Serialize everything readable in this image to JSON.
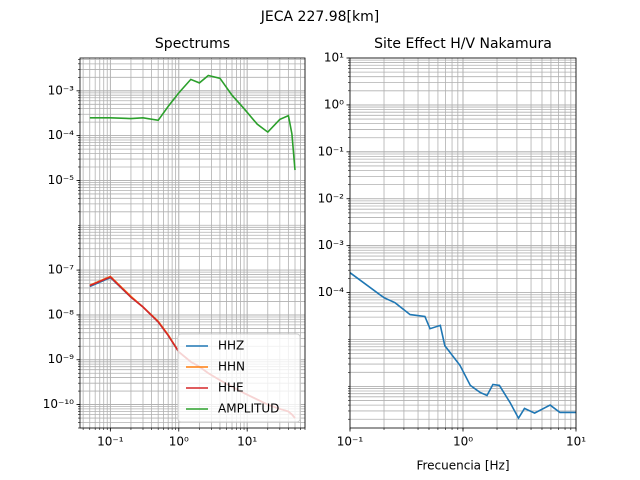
{
  "title": "JECA 227.98[km]",
  "chart_data": [
    {
      "type": "line",
      "title": "Spectrums",
      "xscale": "log",
      "yscale": "log",
      "grid": true,
      "legend": "lower right",
      "xlim": [
        0.036,
        70
      ],
      "ylim": [
        3e-11,
        0.0054
      ],
      "xticks": [
        {
          "value": 0.1,
          "label": "10⁻¹"
        },
        {
          "value": 1,
          "label": "10⁰"
        },
        {
          "value": 10,
          "label": "10¹"
        }
      ],
      "yticks": [
        {
          "value": 1e-10,
          "label": "10⁻¹⁰"
        },
        {
          "value": 1e-09,
          "label": "10⁻⁹"
        },
        {
          "value": 1e-08,
          "label": "10⁻⁸"
        },
        {
          "value": 1e-07,
          "label": "10⁻⁷"
        },
        {
          "value": 1e-05,
          "label": "10⁻⁵"
        },
        {
          "value": 0.0001,
          "label": "10⁻⁴"
        },
        {
          "value": 0.001,
          "label": "10⁻³"
        }
      ],
      "x": [
        0.05,
        0.1,
        0.2,
        0.3,
        0.5,
        0.7,
        1,
        1.5,
        2,
        2.7,
        4,
        6,
        9,
        14,
        20,
        30,
        40,
        45,
        50
      ],
      "series": [
        {
          "name": "HHZ",
          "color": "#1f77b4",
          "values": [
            4.3e-08,
            6.8e-08,
            2.5e-08,
            1.5e-08,
            7e-09,
            3.5e-09,
            1.5e-09,
            9e-10,
            7e-10,
            5e-10,
            3.5e-10,
            2.5e-10,
            1.8e-10,
            1.3e-10,
            1e-10,
            8e-11,
            7e-11,
            6e-11,
            5e-11
          ]
        },
        {
          "name": "HHN",
          "color": "#ff7f0e",
          "values": [
            4.6e-08,
            7.2e-08,
            2.6e-08,
            1.5e-08,
            7.2e-09,
            3.6e-09,
            1.5e-09,
            9e-10,
            7e-10,
            5e-10,
            3.5e-10,
            2.5e-10,
            1.8e-10,
            1.3e-10,
            1e-10,
            8e-11,
            7e-11,
            6e-11,
            5e-11
          ]
        },
        {
          "name": "HHE",
          "color": "#d62728",
          "values": [
            4.5e-08,
            7e-08,
            2.5e-08,
            1.5e-08,
            7e-09,
            3.5e-09,
            1.5e-09,
            9e-10,
            7e-10,
            5e-10,
            3.5e-10,
            2.5e-10,
            1.8e-10,
            1.3e-10,
            1e-10,
            8e-11,
            7e-11,
            6e-11,
            5e-11
          ]
        },
        {
          "name": "AMPLITUD",
          "color": "#2ca02c",
          "values": [
            0.00025,
            0.00025,
            0.00024,
            0.00025,
            0.00022,
            0.00045,
            0.0009,
            0.0018,
            0.0015,
            0.0022,
            0.0019,
            0.0008,
            0.0004,
            0.00018,
            0.00012,
            0.00023,
            0.00028,
            0.00011,
            1.7e-05
          ]
        }
      ]
    },
    {
      "type": "line",
      "title": "Site Effect H/V Nakamura",
      "x_label": "Frecuencia [Hz]",
      "xscale": "log",
      "yscale": "log",
      "grid": true,
      "xlim": [
        0.1,
        10
      ],
      "ylim": [
        1.3e-07,
        10
      ],
      "xticks": [
        {
          "value": 0.1,
          "label": "10⁻¹"
        },
        {
          "value": 1,
          "label": "10⁰"
        },
        {
          "value": 10,
          "label": "10¹"
        }
      ],
      "yticks": [
        {
          "value": 0.0001,
          "label": "10⁻⁴"
        },
        {
          "value": 0.001,
          "label": "10⁻³"
        },
        {
          "value": 0.01,
          "label": "10⁻²"
        },
        {
          "value": 0.1,
          "label": "10⁻¹"
        },
        {
          "value": 1,
          "label": "10⁰"
        },
        {
          "value": 10,
          "label": "10¹"
        }
      ],
      "x": [
        0.1,
        0.2,
        0.25,
        0.34,
        0.46,
        0.51,
        0.63,
        0.69,
        0.94,
        1.16,
        1.41,
        1.63,
        1.84,
        2.1,
        2.6,
        3.1,
        3.5,
        4.3,
        5.9,
        7.2,
        10
      ],
      "series": [
        {
          "color": "#1f77b4",
          "values": [
            0.000266,
            7.8e-05,
            6.1e-05,
            3.4e-05,
            3.1e-05,
            1.7e-05,
            2e-05,
            7.4e-06,
            2.8e-06,
            1.05e-06,
            7.5e-07,
            6.4e-07,
            1.1e-06,
            1.05e-06,
            4.6e-07,
            2.1e-07,
            3.4e-07,
            2.7e-07,
            4e-07,
            2.8e-07,
            2.8e-07
          ]
        }
      ]
    }
  ]
}
